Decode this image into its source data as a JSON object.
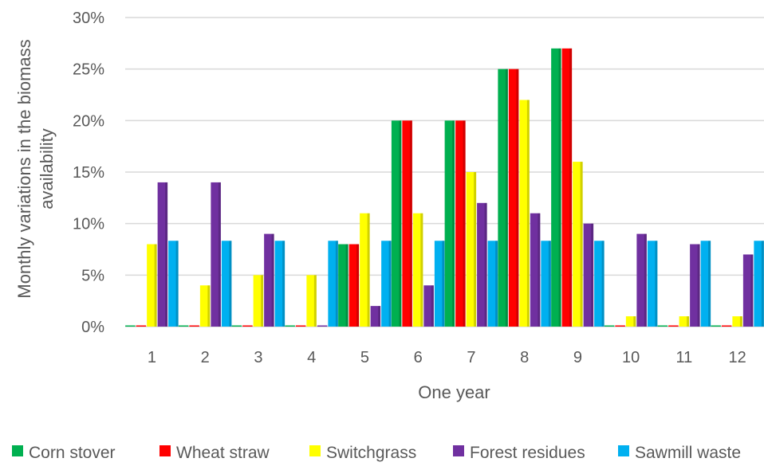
{
  "chart_data": {
    "type": "bar",
    "title": "",
    "xlabel": "One year",
    "ylabel_lines": [
      "Monthly variations in the biomass",
      "availability"
    ],
    "categories": [
      "1",
      "2",
      "3",
      "4",
      "5",
      "6",
      "7",
      "8",
      "9",
      "10",
      "11",
      "12"
    ],
    "ylim": [
      0,
      30
    ],
    "yticks": [
      0,
      5,
      10,
      15,
      20,
      25,
      30
    ],
    "ytick_labels": [
      "0%",
      "5%",
      "10%",
      "15%",
      "20%",
      "25%",
      "30%"
    ],
    "value_unit": "%",
    "grid": true,
    "legend_position": "bottom",
    "series": [
      {
        "name": "Corn stover",
        "color": "#00b050",
        "values": [
          0,
          0,
          0,
          0,
          8,
          20,
          20,
          25,
          27,
          0,
          0,
          0
        ]
      },
      {
        "name": "Wheat straw",
        "color": "#ff0000",
        "values": [
          0,
          0,
          0,
          0,
          8,
          20,
          20,
          25,
          27,
          0,
          0,
          0
        ]
      },
      {
        "name": "Switchgrass",
        "color": "#ffff00",
        "values": [
          8,
          4,
          5,
          5,
          11,
          11,
          15,
          22,
          16,
          1,
          1,
          1
        ]
      },
      {
        "name": "Forest residues",
        "color": "#7030a0",
        "values": [
          14,
          14,
          9,
          0,
          2,
          4,
          12,
          11,
          10,
          9,
          8,
          7
        ]
      },
      {
        "name": "Sawmill waste",
        "color": "#00b0f0",
        "values": [
          8.33,
          8.33,
          8.33,
          8.33,
          8.33,
          8.33,
          8.33,
          8.33,
          8.33,
          8.33,
          8.33,
          8.33
        ]
      }
    ]
  }
}
